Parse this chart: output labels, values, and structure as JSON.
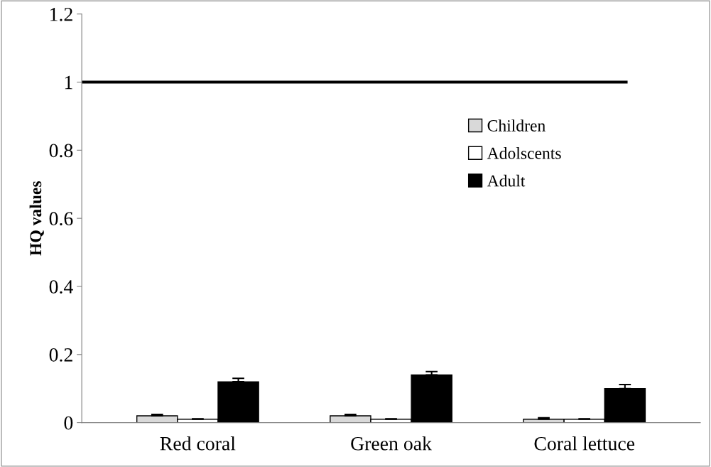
{
  "chart_data": {
    "type": "bar",
    "ylabel": "HQ values",
    "categories": [
      "Red coral",
      "Green oak",
      "Coral lettuce"
    ],
    "series": [
      {
        "name": "Children",
        "color": "#d9d9d9",
        "values": [
          0.02,
          0.02,
          0.01
        ],
        "errors": [
          0.004,
          0.004,
          0.004
        ]
      },
      {
        "name": "Adolscents",
        "color": "#ffffff",
        "values": [
          0.01,
          0.01,
          0.01
        ],
        "errors": [
          0.001,
          0.001,
          0.001
        ]
      },
      {
        "name": "Adult",
        "color": "#000000",
        "values": [
          0.12,
          0.14,
          0.1
        ],
        "errors": [
          0.01,
          0.01,
          0.012
        ]
      }
    ],
    "ylim": [
      0,
      1.2
    ],
    "yticks": [
      0,
      0.2,
      0.4,
      0.6,
      0.8,
      1,
      1.2
    ],
    "grid": false,
    "legend": "top right",
    "ref_lines": [
      {
        "axis": "y",
        "value": 1,
        "color": "#000000",
        "line_style": "solid"
      }
    ]
  }
}
